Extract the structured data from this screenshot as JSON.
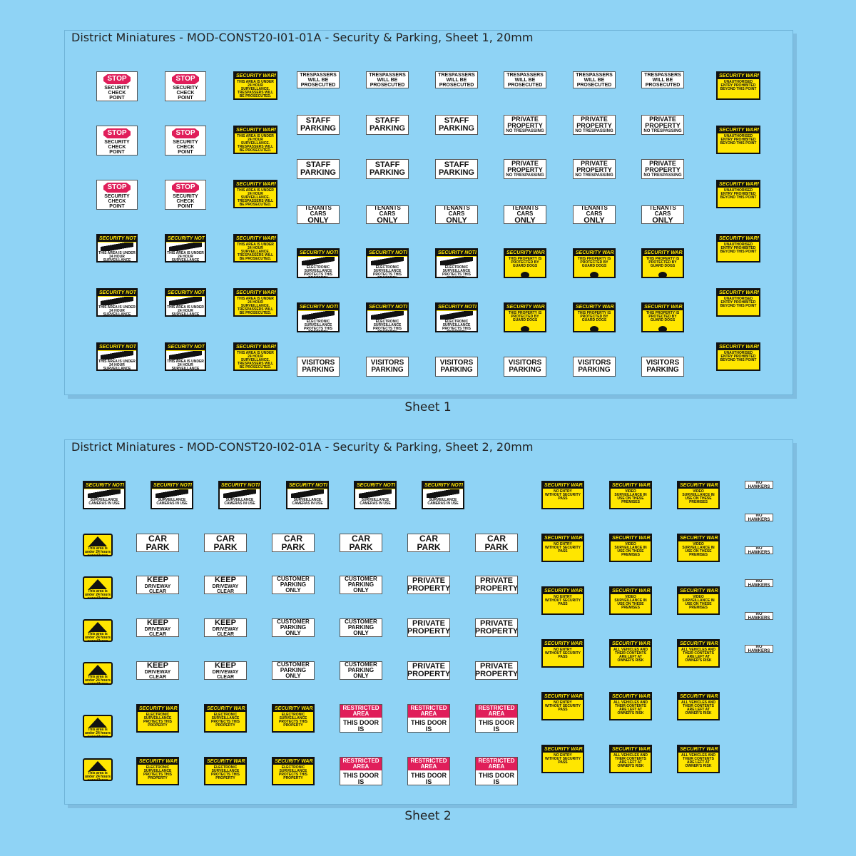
{
  "sheet1": {
    "title": "District Miniatures - MOD-CONST20-I01-01A - Security & Parking, Sheet 1, 20mm",
    "caption": "Sheet 1"
  },
  "sheet2": {
    "title": "District Miniatures - MOD-CONST20-I02-01A - Security & Parking, Sheet 2, 20mm",
    "caption": "Sheet 2"
  },
  "labels": {
    "stop": "STOP",
    "security_check_point": "SECURITY CHECK POINT",
    "security_warning": "SECURITY WARNING",
    "security_notice": "SECURITY NOTICE",
    "surveillance_24h": "THIS AREA IS UNDER 24 HOUR SURVEILLANCE. TRESPASSERS WILL BE PROSECUTED.",
    "area_24h": "THIS AREA IS UNDER 24 HOUR SURVEILLANCE",
    "trespassers": "TRESPASSERS WILL BE PROSECUTED",
    "staff_parking": "STAFF PARKING",
    "private_property": "PRIVATE PROPERTY",
    "no_trespassing": "NO TRESPASSING",
    "tenants_cars": "TENANTS CARS",
    "only": "ONLY",
    "electronic_surveillance": "ELECTRONIC SURVEILLANCE PROTECTS THIS PROPERTY",
    "guard_dogs": "THIS PROPERTY IS PROTECTED BY GUARD DOGS",
    "visitors_parking": "VISITORS PARKING",
    "unauthorised_entry": "UNAUTHORISED ENTRY PROHIBITED BEYOND THIS POINT",
    "surveillance_cameras": "SURVEILLANCE CAMERAS IN USE",
    "area_24h_lower": "This area is under 24 hours surveillance",
    "car_park": "CAR PARK",
    "keep": "KEEP",
    "driveway_clear": "DRIVEWAY CLEAR",
    "customer_parking": "CUSTOMER PARKING ONLY",
    "private_property_2": "PRIVATE PROPERTY",
    "restricted_area": "RESTRICTED AREA",
    "door_alarmed": "THIS DOOR IS ALARMED",
    "no_entry_pass": "NO ENTRY WITHOUT SECURITY PASS",
    "video_surveillance": "VIDEO SURVEILLANCE IN USE ON THESE PREMISES",
    "vehicles_risk": "ALL VEHICLES AND THEIR CONTENTS ARE LEFT AT OWNER'S RISK",
    "no_hawkers": "NO HAWKERS"
  }
}
